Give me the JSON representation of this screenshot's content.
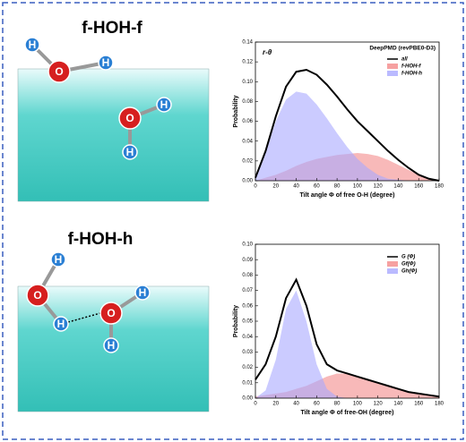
{
  "diagrams": [
    {
      "title": "f-HOH-f",
      "atoms": [
        "H",
        "O",
        "H",
        "O",
        "H",
        "H"
      ]
    },
    {
      "title": "f-HOH-h",
      "atoms": [
        "H",
        "O",
        "H",
        "O",
        "H",
        "H"
      ]
    }
  ],
  "chart_data": [
    {
      "type": "area",
      "annotation": "r-θ",
      "subtitle": "DeepPMD (revPBE0-D3)",
      "xlabel": "Tilt angle Φ of free O-H (degree)",
      "ylabel": "Probability",
      "x": [
        0,
        10,
        20,
        30,
        40,
        50,
        60,
        70,
        80,
        90,
        100,
        110,
        120,
        130,
        140,
        150,
        160,
        170,
        180
      ],
      "series": [
        {
          "name": "all",
          "style": "line",
          "color": "#000000",
          "values": [
            0.003,
            0.03,
            0.065,
            0.095,
            0.11,
            0.112,
            0.107,
            0.097,
            0.085,
            0.072,
            0.06,
            0.05,
            0.04,
            0.03,
            0.021,
            0.013,
            0.006,
            0.002,
            0
          ]
        },
        {
          "name": "f-HOH-f",
          "style": "area",
          "color": "#f48a8a",
          "values": [
            0,
            0.003,
            0.006,
            0.01,
            0.015,
            0.019,
            0.022,
            0.024,
            0.026,
            0.027,
            0.028,
            0.027,
            0.025,
            0.021,
            0.016,
            0.011,
            0.006,
            0.002,
            0
          ]
        },
        {
          "name": "f-HOH-h",
          "style": "area",
          "color": "#a9a9ff",
          "values": [
            0.003,
            0.03,
            0.06,
            0.082,
            0.09,
            0.088,
            0.077,
            0.063,
            0.048,
            0.034,
            0.022,
            0.013,
            0.006,
            0.002,
            0.001,
            0,
            0,
            0,
            0
          ]
        }
      ],
      "xlim": [
        0,
        180
      ],
      "xticks": [
        0,
        20,
        40,
        60,
        80,
        100,
        120,
        140,
        160,
        180
      ],
      "ylim": [
        0,
        0.14
      ],
      "yticks": [
        {
          "value": 0,
          "label": "0.00"
        },
        {
          "value": 0.02,
          "label": "0.02"
        },
        {
          "value": 0.04,
          "label": "0.04"
        },
        {
          "value": 0.06,
          "label": "0.06"
        },
        {
          "value": 0.08,
          "label": "0.08"
        },
        {
          "value": 0.1,
          "label": "0.10"
        },
        {
          "value": 0.12,
          "label": "0.12"
        },
        {
          "value": 0.14,
          "label": "0.14"
        }
      ],
      "legend": "upper-right"
    },
    {
      "type": "area",
      "xlabel": "Tilt angle Φ of free-OH (degree)",
      "ylabel": "Probability",
      "x": [
        0,
        10,
        20,
        30,
        40,
        50,
        60,
        70,
        80,
        90,
        100,
        110,
        120,
        130,
        140,
        150,
        160,
        170,
        180
      ],
      "series": [
        {
          "name": "G (Φ)",
          "style": "line",
          "color": "#000000",
          "values": [
            0.012,
            0.022,
            0.04,
            0.065,
            0.077,
            0.06,
            0.035,
            0.022,
            0.018,
            0.016,
            0.014,
            0.012,
            0.01,
            0.008,
            0.006,
            0.004,
            0.003,
            0.002,
            0.001
          ]
        },
        {
          "name": "Gf(Φ)",
          "style": "area",
          "color": "#f48a8a",
          "values": [
            0.001,
            0.002,
            0.003,
            0.004,
            0.006,
            0.008,
            0.011,
            0.014,
            0.016,
            0.016,
            0.014,
            0.012,
            0.01,
            0.008,
            0.006,
            0.004,
            0.003,
            0.002,
            0.001
          ]
        },
        {
          "name": "Gh(Φ)",
          "style": "area",
          "color": "#a9a9ff",
          "values": [
            0,
            0.005,
            0.025,
            0.058,
            0.07,
            0.05,
            0.022,
            0.006,
            0.001,
            0,
            0,
            0,
            0,
            0,
            0,
            0,
            0,
            0,
            0
          ]
        }
      ],
      "xlim": [
        0,
        180
      ],
      "xticks": [
        0,
        20,
        40,
        60,
        80,
        100,
        120,
        140,
        160,
        180
      ],
      "ylim": [
        0,
        0.1
      ],
      "yticks": [
        {
          "value": 0,
          "label": "0.00"
        },
        {
          "value": 0.01,
          "label": "0.01"
        },
        {
          "value": 0.02,
          "label": "0.02"
        },
        {
          "value": 0.03,
          "label": "0.03"
        },
        {
          "value": 0.04,
          "label": "0.04"
        },
        {
          "value": 0.05,
          "label": "0.05"
        },
        {
          "value": 0.06,
          "label": "0.06"
        },
        {
          "value": 0.07,
          "label": "0.07"
        },
        {
          "value": 0.08,
          "label": "0.08"
        },
        {
          "value": 0.09,
          "label": "0.09"
        },
        {
          "value": 0.1,
          "label": "0.10"
        }
      ],
      "legend": "upper-right"
    }
  ]
}
